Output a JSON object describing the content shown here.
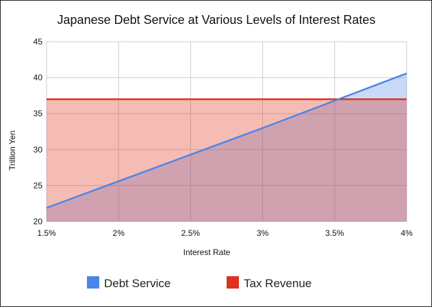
{
  "chart_data": {
    "type": "area",
    "title": "Japanese Debt Service at Various Levels of Interest Rates",
    "xlabel": "Interest Rate",
    "ylabel": "Trillion Yen",
    "x": [
      0.015,
      0.02,
      0.025,
      0.03,
      0.035,
      0.04
    ],
    "x_tick_labels": [
      "1.5%",
      "2%",
      "2.5%",
      "3%",
      "3.5%",
      "4%"
    ],
    "y_ticks": [
      20,
      25,
      30,
      35,
      40,
      45
    ],
    "ylim": [
      20,
      45
    ],
    "xlim": [
      0.015,
      0.04
    ],
    "grid": true,
    "legend_position": "bottom",
    "series": [
      {
        "name": "Debt Service",
        "values": [
          21.9,
          25.6,
          29.3,
          33.0,
          36.8,
          40.6
        ],
        "color": "#4a86e8",
        "fill": "#c9daf8"
      },
      {
        "name": "Tax Revenue",
        "values": [
          37.0,
          37.0,
          37.0,
          37.0,
          37.0,
          37.0
        ],
        "color": "#e0301e",
        "fill": "#f4b5a8"
      }
    ]
  }
}
